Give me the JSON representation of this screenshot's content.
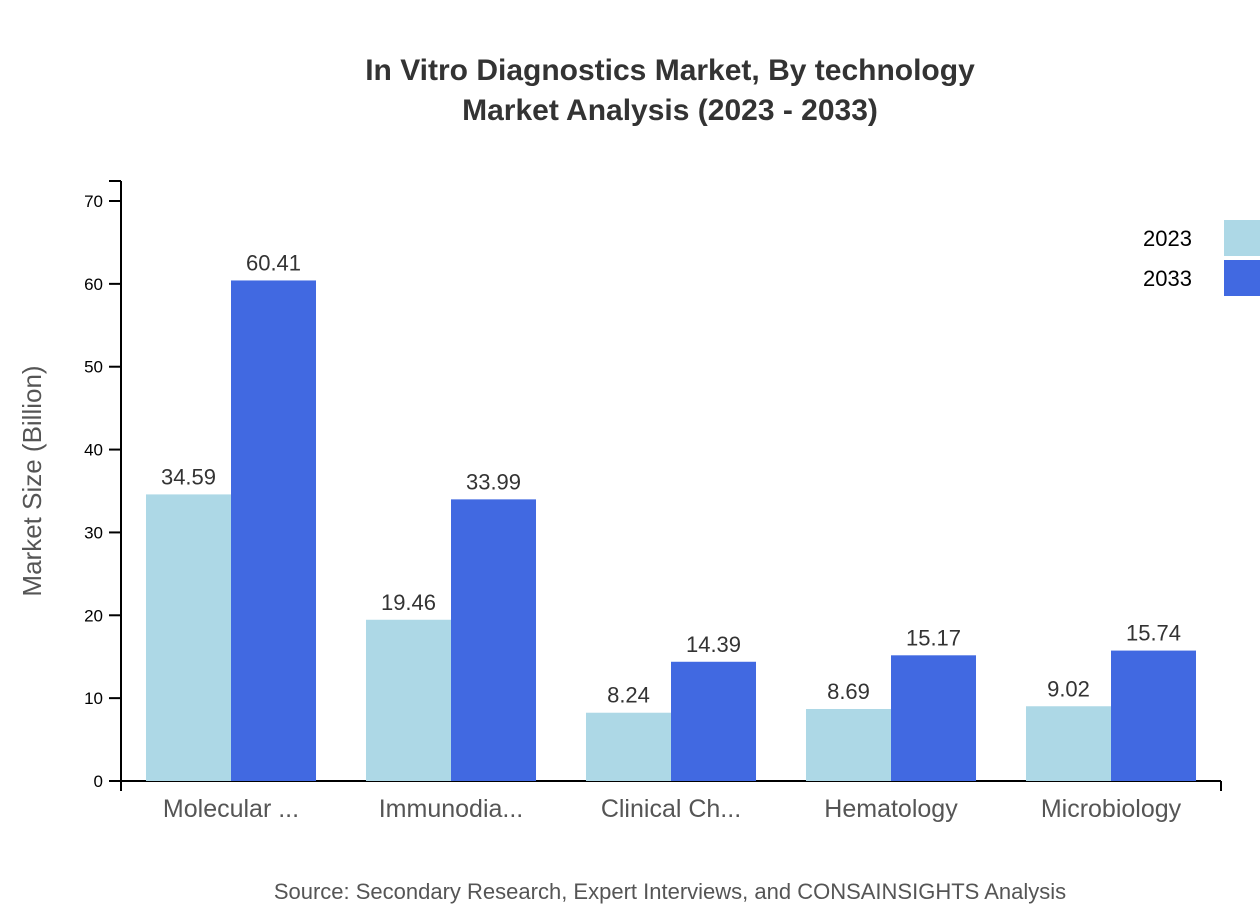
{
  "chart_data": {
    "type": "bar",
    "title": "In Vitro Diagnostics Market, By technology",
    "subtitle": "Market Analysis (2023 - 2033)",
    "xlabel": "",
    "ylabel": "Market Size (Billion)",
    "ylim": [
      0,
      72
    ],
    "yticks": [
      0,
      10,
      20,
      30,
      40,
      50,
      60,
      70
    ],
    "grid": false,
    "legend_position": "top-right",
    "categories": [
      "Molecular ...",
      "Immunodia...",
      "Clinical Ch...",
      "Hematology",
      "Microbiology"
    ],
    "series": [
      {
        "name": "2023",
        "color": "#add8e6",
        "values": [
          34.59,
          19.46,
          8.24,
          8.69,
          9.02
        ]
      },
      {
        "name": "2033",
        "color": "#4169e1",
        "values": [
          60.41,
          33.99,
          14.39,
          15.17,
          15.74
        ]
      }
    ],
    "source": "Source: Secondary Research, Expert Interviews, and CONSAINSIGHTS Analysis"
  }
}
